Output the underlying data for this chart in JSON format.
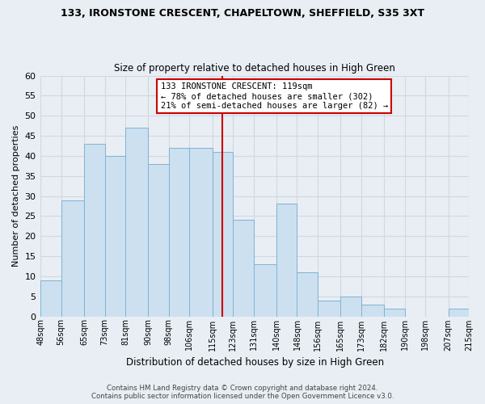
{
  "title": "133, IRONSTONE CRESCENT, CHAPELTOWN, SHEFFIELD, S35 3XT",
  "subtitle": "Size of property relative to detached houses in High Green",
  "xlabel": "Distribution of detached houses by size in High Green",
  "ylabel": "Number of detached properties",
  "bins": [
    48,
    56,
    65,
    73,
    81,
    90,
    98,
    106,
    115,
    123,
    131,
    140,
    148,
    156,
    165,
    173,
    182,
    190,
    198,
    207,
    215
  ],
  "counts": [
    9,
    29,
    43,
    40,
    47,
    38,
    42,
    42,
    41,
    24,
    13,
    28,
    11,
    4,
    5,
    3,
    2,
    0,
    0,
    2
  ],
  "bar_color": "#cce0f0",
  "bar_edge_color": "#7fb3d3",
  "property_size": 119,
  "vline_color": "#cc0000",
  "annotation_line1": "133 IRONSTONE CRESCENT: 119sqm",
  "annotation_line2": "← 78% of detached houses are smaller (302)",
  "annotation_line3": "21% of semi-detached houses are larger (82) →",
  "annotation_box_edge": "#cc0000",
  "annotation_box_face": "#ffffff",
  "ylim": [
    0,
    60
  ],
  "yticks": [
    0,
    5,
    10,
    15,
    20,
    25,
    30,
    35,
    40,
    45,
    50,
    55,
    60
  ],
  "footnote": "Contains HM Land Registry data © Crown copyright and database right 2024.\nContains public sector information licensed under the Open Government Licence v3.0.",
  "bg_color": "#e8eef4",
  "plot_bg_color": "#e8eef4",
  "grid_color": "#d0d8e0",
  "tick_labels": [
    "48sqm",
    "56sqm",
    "65sqm",
    "73sqm",
    "81sqm",
    "90sqm",
    "98sqm",
    "106sqm",
    "115sqm",
    "123sqm",
    "131sqm",
    "140sqm",
    "148sqm",
    "156sqm",
    "165sqm",
    "173sqm",
    "182sqm",
    "190sqm",
    "198sqm",
    "207sqm",
    "215sqm"
  ]
}
